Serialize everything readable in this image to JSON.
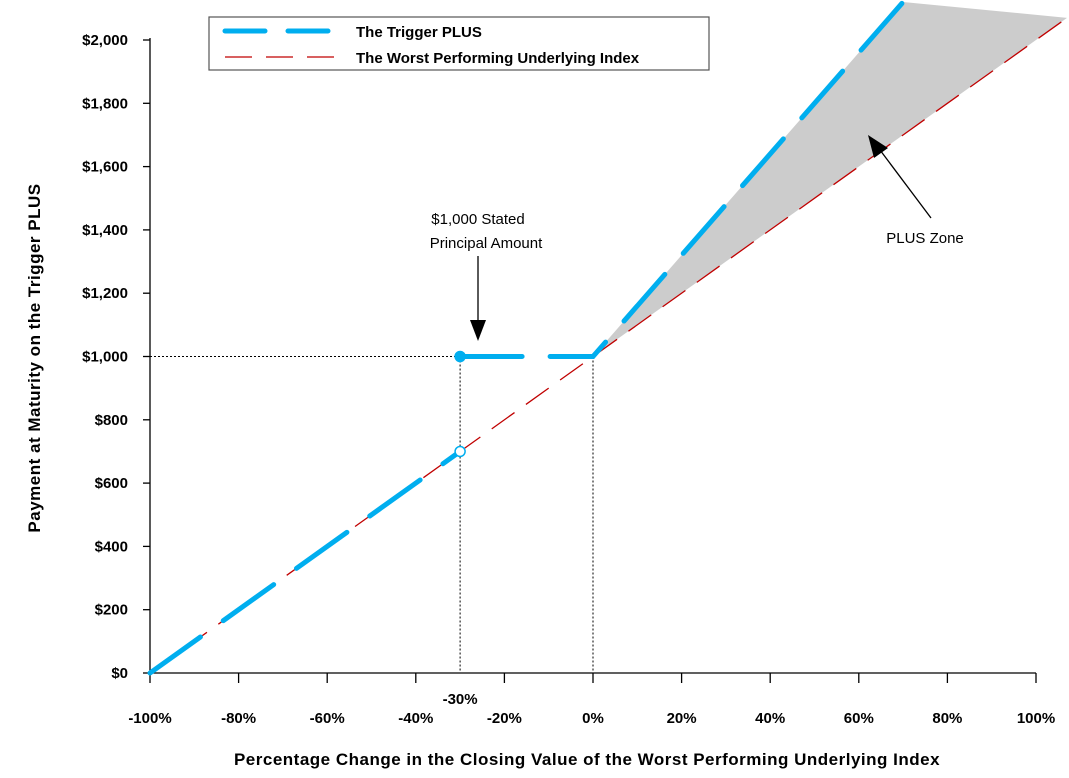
{
  "chart_data": {
    "type": "line",
    "xlabel": "Percentage Change in the Closing Value of the Worst Performing Underlying Index",
    "ylabel": "Payment at Maturity on the Trigger PLUS",
    "xlim": [
      -100,
      100
    ],
    "ylim": [
      0,
      2000
    ],
    "x_ticks": [
      "-100%",
      "-80%",
      "-60%",
      "-40%",
      "-20%",
      "0%",
      "20%",
      "40%",
      "60%",
      "80%",
      "100%"
    ],
    "x_tick_values": [
      -100,
      -80,
      -60,
      -40,
      -20,
      0,
      20,
      40,
      60,
      80,
      100
    ],
    "y_ticks": [
      "$0",
      "$200",
      "$400",
      "$600",
      "$800",
      "$1,000",
      "$1,200",
      "$1,400",
      "$1,600",
      "$1,800",
      "$2,000"
    ],
    "y_tick_values": [
      0,
      200,
      400,
      600,
      800,
      1000,
      1200,
      1400,
      1600,
      1800,
      2000
    ],
    "extra_x_label": {
      "text": "-30%",
      "value": -30
    },
    "grid": false,
    "legend_position": "top-left",
    "series": [
      {
        "name": "The Trigger PLUS",
        "color": "#00aeef",
        "style": "long-dash",
        "points": [
          [
            -100,
            0
          ],
          [
            -30,
            700
          ],
          null,
          [
            -30,
            1000
          ],
          [
            0,
            1000
          ],
          [
            70,
            2120
          ]
        ]
      },
      {
        "name": "The Worst Performing Underlying Index",
        "color": "#c00000",
        "style": "dash",
        "points": [
          [
            -100,
            0
          ],
          [
            107,
            2070
          ]
        ]
      }
    ],
    "markers": [
      {
        "x": -30,
        "y": 1000,
        "type": "filled",
        "color": "#00aeef"
      },
      {
        "x": -30,
        "y": 700,
        "type": "open",
        "color": "#00aeef"
      }
    ],
    "shaded_region": {
      "label": "PLUS Zone",
      "color": "#cccccc"
    },
    "annotations": [
      {
        "lines": [
          "$1,000 Stated",
          "Principal Amount"
        ],
        "points_to": [
          -27,
          1030
        ]
      },
      {
        "lines": [
          "PLUS Zone"
        ],
        "points_to": [
          62,
          1680
        ]
      }
    ]
  }
}
